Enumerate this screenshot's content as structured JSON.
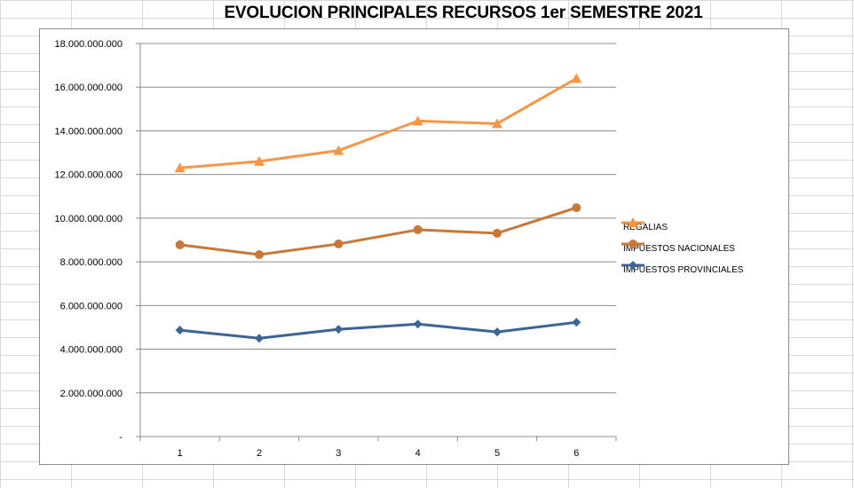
{
  "chart_data": {
    "type": "line",
    "title": "EVOLUCION PRINCIPALES RECURSOS 1er SEMESTRE 2021",
    "x": [
      "1",
      "2",
      "3",
      "4",
      "5",
      "6"
    ],
    "ylim": [
      0,
      18000000000
    ],
    "yticks": [
      {
        "value": 0,
        "label": "-"
      },
      {
        "value": 2000000000,
        "label": "2.000.000.000"
      },
      {
        "value": 4000000000,
        "label": "4.000.000.000"
      },
      {
        "value": 6000000000,
        "label": "6.000.000.000"
      },
      {
        "value": 8000000000,
        "label": "8.000.000.000"
      },
      {
        "value": 10000000000,
        "label": "10.000.000.000"
      },
      {
        "value": 12000000000,
        "label": "12.000.000.000"
      },
      {
        "value": 14000000000,
        "label": "14.000.000.000"
      },
      {
        "value": 16000000000,
        "label": "16.000.000.000"
      },
      {
        "value": 18000000000,
        "label": "18.000.000.000"
      }
    ],
    "grid": true,
    "legend_position": "right",
    "series": [
      {
        "name": "REGALIAS",
        "color": "#f79646",
        "marker": "triangle",
        "values": [
          12300000000,
          12600000000,
          13100000000,
          14450000000,
          14330000000,
          16400000000
        ]
      },
      {
        "name": "IMPUESTOS NACIONALES",
        "color": "#c9783a",
        "marker": "circle",
        "values": [
          8780000000,
          8330000000,
          8820000000,
          9470000000,
          9310000000,
          10480000000
        ]
      },
      {
        "name": "IMPUESTOS PROVINCIALES",
        "color": "#3c6496",
        "marker": "diamond",
        "values": [
          4870000000,
          4500000000,
          4910000000,
          5150000000,
          4790000000,
          5230000000
        ]
      }
    ]
  }
}
